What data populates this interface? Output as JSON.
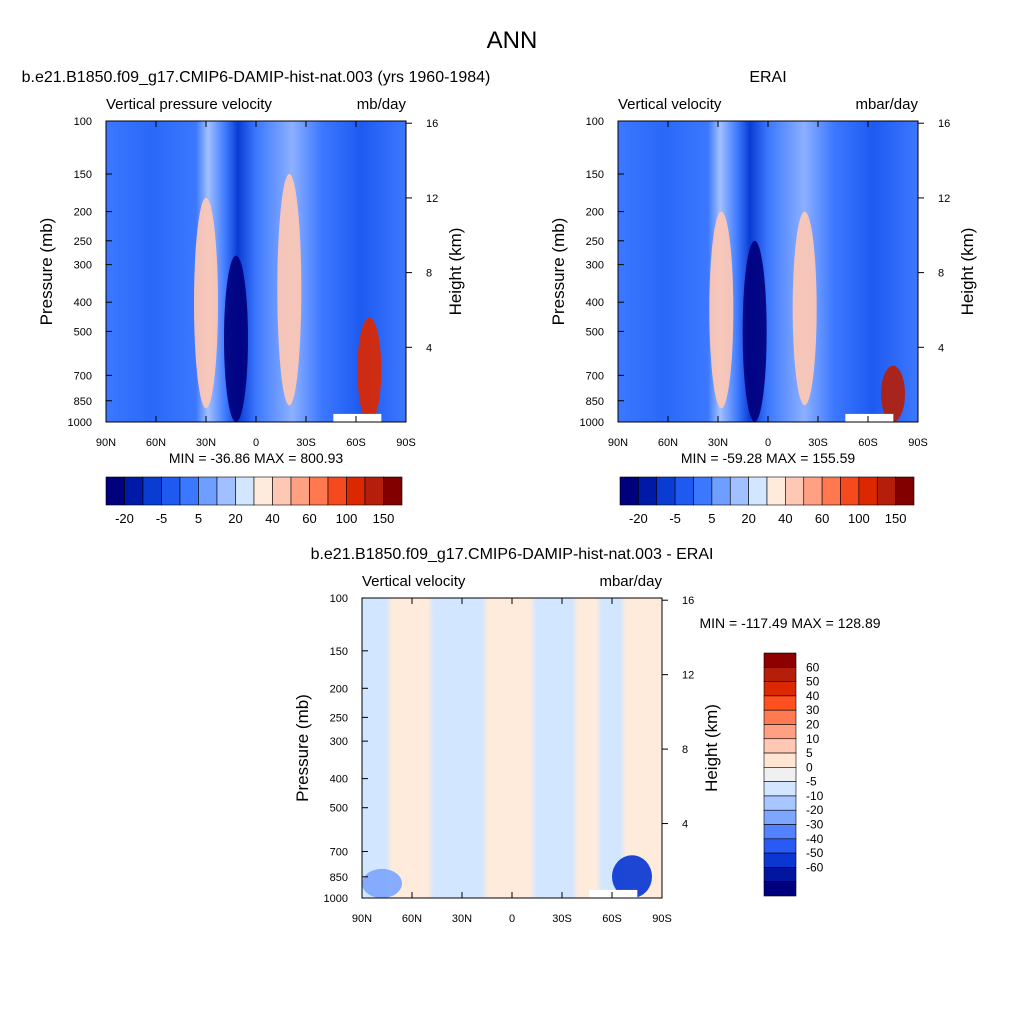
{
  "figure_title": "ANN",
  "chart_data": [
    {
      "type": "heatmap",
      "title": "b.e21.B1850.f09_g17.CMIP6-DAMIP-hist-nat.003 (yrs 1960-1984)",
      "left_label": "Vertical pressure velocity",
      "right_label": "mb/day",
      "ylabel": "Pressure (mb)",
      "y2label": "Height (km)",
      "x_ticks": [
        "90N",
        "60N",
        "30N",
        "0",
        "30S",
        "60S",
        "90S"
      ],
      "y_ticks": [
        100,
        150,
        200,
        250,
        300,
        400,
        500,
        700,
        850,
        1000
      ],
      "y2_ticks": [
        4,
        8,
        12,
        16
      ],
      "ylim": [
        1000,
        100
      ],
      "xlim": [
        90,
        -90
      ],
      "stats": "MIN = -36.86  MAX = 800.93",
      "colorbar_tick_labels": [
        "-20",
        "-5",
        "5",
        "20",
        "40",
        "60",
        "100",
        "150"
      ],
      "colorbar_orientation": "horizontal",
      "features": [
        {
          "lat": 12,
          "p": [
            280,
            1000
          ],
          "value": -32
        },
        {
          "lat": -20,
          "p": [
            150,
            880
          ],
          "value": 10
        },
        {
          "lat": 30,
          "p": [
            180,
            900
          ],
          "value": 12
        },
        {
          "lat": -68,
          "p": [
            450,
            1000
          ],
          "value": 60
        }
      ]
    },
    {
      "type": "heatmap",
      "title": "ERAI",
      "left_label": "Vertical velocity",
      "right_label": "mbar/day",
      "ylabel": "Pressure (mb)",
      "y2label": "Height (km)",
      "x_ticks": [
        "90N",
        "60N",
        "30N",
        "0",
        "30S",
        "60S",
        "90S"
      ],
      "y_ticks": [
        100,
        150,
        200,
        250,
        300,
        400,
        500,
        700,
        850,
        1000
      ],
      "y2_ticks": [
        4,
        8,
        12,
        16
      ],
      "ylim": [
        1000,
        100
      ],
      "xlim": [
        90,
        -90
      ],
      "stats": "MIN = -59.28  MAX = 155.59",
      "colorbar_tick_labels": [
        "-20",
        "-5",
        "5",
        "20",
        "40",
        "60",
        "100",
        "150"
      ],
      "colorbar_orientation": "horizontal",
      "features": [
        {
          "lat": 8,
          "p": [
            250,
            1000
          ],
          "value": -40
        },
        {
          "lat": -22,
          "p": [
            200,
            880
          ],
          "value": 10
        },
        {
          "lat": 28,
          "p": [
            200,
            900
          ],
          "value": 12
        },
        {
          "lat": -75,
          "p": [
            650,
            1000
          ],
          "value": 80
        }
      ]
    },
    {
      "type": "heatmap",
      "title": "b.e21.B1850.f09_g17.CMIP6-DAMIP-hist-nat.003 - ERAI",
      "left_label": "Vertical velocity",
      "right_label": "mbar/day",
      "ylabel": "Pressure (mb)",
      "y2label": "Height (km)",
      "x_ticks": [
        "90N",
        "60N",
        "30N",
        "0",
        "30S",
        "60S",
        "90S"
      ],
      "y_ticks": [
        100,
        150,
        200,
        250,
        300,
        400,
        500,
        700,
        850,
        1000
      ],
      "y2_ticks": [
        4,
        8,
        12,
        16
      ],
      "ylim": [
        1000,
        100
      ],
      "xlim": [
        90,
        -90
      ],
      "stats": "MIN = -117.49  MAX = 128.89",
      "colorbar_tick_labels": [
        "60",
        "50",
        "40",
        "30",
        "20",
        "10",
        "5",
        "0",
        "-5",
        "-10",
        "-20",
        "-30",
        "-40",
        "-50",
        "-60"
      ],
      "colorbar_orientation": "vertical",
      "features": [
        {
          "lat": -72,
          "p": [
            720,
            1000
          ],
          "value": -60
        },
        {
          "lat": 78,
          "p": [
            800,
            1000
          ],
          "value": -30
        }
      ]
    }
  ],
  "colors": {
    "abs_scale": [
      "#00007e",
      "#001aa8",
      "#0a3cd2",
      "#1e5af0",
      "#3c78ff",
      "#6e9eff",
      "#a0c0ff",
      "#d2e6ff",
      "#ffebdc",
      "#ffc8b4",
      "#ffa082",
      "#ff7850",
      "#f54a1e",
      "#dc2800",
      "#b41e0a",
      "#820000"
    ],
    "diff_scale": [
      "#8c0000",
      "#b41e0a",
      "#dc2800",
      "#ff5020",
      "#ff7a50",
      "#ffa082",
      "#ffc8b4",
      "#ffe6d2",
      "#f0f0f0",
      "#d2e6ff",
      "#a8c6ff",
      "#7ea6ff",
      "#5482ff",
      "#2a5af5",
      "#0a37d2",
      "#0016a0",
      "#00007e"
    ]
  }
}
